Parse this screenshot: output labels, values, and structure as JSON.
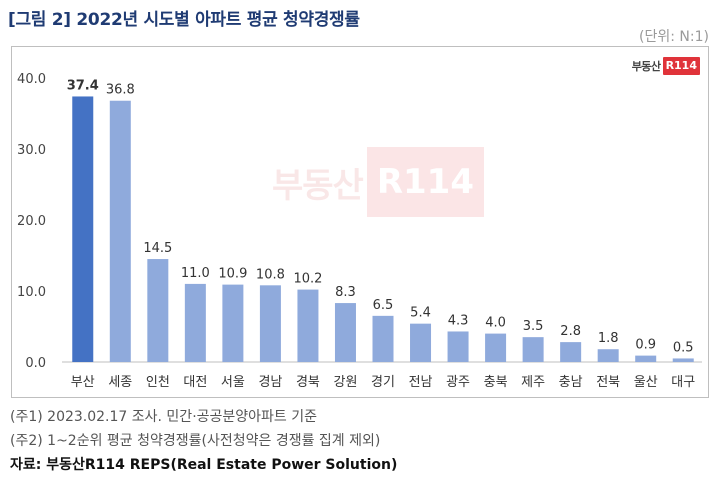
{
  "title": "[그림 2] 2022년 시도별 아파트 평균 청약경쟁률",
  "unit": "(단위: N:1)",
  "logo": {
    "text": "부동산",
    "box": "R114"
  },
  "watermark": {
    "text": "부동산",
    "box": "R114"
  },
  "notes": [
    "(주1) 2023.02.17 조사. 민간·공공분양아파트 기준",
    "(주2) 1~2순위 평균 청약경쟁률(사전청약은 경쟁률 집계 제외)"
  ],
  "source": "자료: 부동산R114 REPS(Real Estate Power Solution)",
  "colors": {
    "highlight": "#4472c4",
    "bar": "#8faadc",
    "axis": "#bfbfbf"
  },
  "chart_data": {
    "type": "bar",
    "categories": [
      "부산",
      "세종",
      "인천",
      "대전",
      "서울",
      "경남",
      "경북",
      "강원",
      "경기",
      "전남",
      "광주",
      "충북",
      "제주",
      "충남",
      "전북",
      "울산",
      "대구"
    ],
    "values": [
      37.4,
      36.8,
      14.5,
      11.0,
      10.9,
      10.8,
      10.2,
      8.3,
      6.5,
      5.4,
      4.3,
      4.0,
      3.5,
      2.8,
      1.8,
      0.9,
      0.5
    ],
    "value_labels": [
      "37.4",
      "36.8",
      "14.5",
      "11.0",
      "10.9",
      "10.8",
      "10.2",
      "8.3",
      "6.5",
      "5.4",
      "4.3",
      "4.0",
      "3.5",
      "2.8",
      "1.8",
      "0.9",
      "0.5"
    ],
    "highlight_index": 0,
    "yticks": [
      0,
      10,
      20,
      30,
      40
    ],
    "ytick_labels": [
      "0.0",
      "10.0",
      "20.0",
      "30.0",
      "40.0"
    ],
    "ylim": [
      0,
      40
    ],
    "grid": false,
    "legend": "none"
  }
}
